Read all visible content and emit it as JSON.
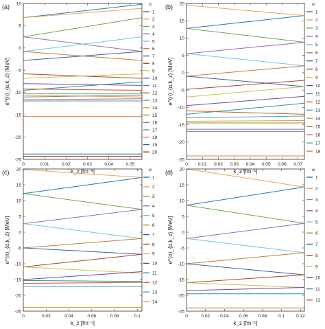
{
  "chart_data": [
    {
      "type": "line",
      "panel_label": "(a)",
      "xlabel": "k_z  [fm⁻¹]",
      "ylabel": "e^(n)_{α,k_z}  [MeV]",
      "xlim": [
        0,
        0.0555
      ],
      "ylim": [
        -25,
        10
      ],
      "x_ticks": [
        "0",
        "0.01",
        "0.02",
        "0.03",
        "0.04",
        "0.05"
      ],
      "x_tick_values": [
        0,
        0.01,
        0.02,
        0.03,
        0.04,
        0.05
      ],
      "y_ticks": [
        "10",
        "5",
        "0",
        "-5",
        "-10",
        "-15",
        "-20",
        "-25"
      ],
      "y_tick_values": [
        10,
        5,
        0,
        -5,
        -10,
        -15,
        -20,
        -25
      ],
      "legend_title": "α",
      "legend_labels": [
        "1",
        "2",
        "3",
        "4",
        "5",
        "6",
        "7",
        "8",
        "9",
        "10",
        "11",
        "12",
        "13",
        "14",
        "15",
        "16",
        "17",
        "18",
        "19",
        "20"
      ],
      "series": [
        {
          "x": [
            0,
            0.0555
          ],
          "y": [
            6.8,
            9.8
          ]
        },
        {
          "x": [
            0,
            0.0555
          ],
          "y": [
            6.8,
            8.9
          ]
        },
        {
          "x": [
            0,
            0.0555
          ],
          "y": [
            2.5,
            6.8
          ]
        },
        {
          "x": [
            0,
            0.0555
          ],
          "y": [
            2.5,
            -0.8
          ]
        },
        {
          "x": [
            0,
            0.0555
          ],
          "y": [
            -0.8,
            2.5
          ]
        },
        {
          "x": [
            0,
            0.0555
          ],
          "y": [
            -0.8,
            -2.8
          ]
        },
        {
          "x": [
            0,
            0.0555
          ],
          "y": [
            -2.8,
            -0.8
          ]
        },
        {
          "x": [
            0,
            0.0555
          ],
          "y": [
            -5.8,
            -6.8
          ]
        },
        {
          "x": [
            0,
            0.0555
          ],
          "y": [
            -6.8,
            -5.8
          ]
        },
        {
          "x": [
            0,
            0.0555
          ],
          "y": [
            -8.0,
            -8.4
          ]
        },
        {
          "x": [
            0,
            0.0555
          ],
          "y": [
            -9.5,
            -7.6
          ]
        },
        {
          "x": [
            0,
            0.0555
          ],
          "y": [
            -9.2,
            -9.5
          ]
        },
        {
          "x": [
            0,
            0.0555
          ],
          "y": [
            -10.3,
            -10.3
          ]
        },
        {
          "x": [
            0,
            0.0555
          ],
          "y": [
            -10.6,
            -11.0
          ]
        },
        {
          "x": [
            0,
            0.0555
          ],
          "y": [
            -11.0,
            -10.6
          ]
        },
        {
          "x": [
            0,
            0.0555
          ],
          "y": [
            -11.6,
            -11.4
          ]
        },
        {
          "x": [
            0,
            0.0555
          ],
          "y": [
            -11.9,
            -11.9
          ]
        },
        {
          "x": [
            0,
            0.0555
          ],
          "y": [
            -15.4,
            -15.4
          ]
        },
        {
          "x": [
            0,
            0.0555
          ],
          "y": [
            -23.8,
            -23.8
          ]
        },
        {
          "x": [
            0,
            0.0555
          ],
          "y": [
            -24.3,
            -24.3
          ]
        }
      ]
    },
    {
      "type": "line",
      "panel_label": "(b)",
      "xlabel": "k_z  [fm⁻¹]",
      "ylabel": "e^(n)_{α,k_z}  [MeV]",
      "xlim": [
        0,
        0.074
      ],
      "ylim": [
        -25,
        20
      ],
      "x_ticks": [
        "0",
        "0.01",
        "0.02",
        "0.03",
        "0.04",
        "0.05",
        "0.06",
        "0.07"
      ],
      "x_tick_values": [
        0,
        0.01,
        0.02,
        0.03,
        0.04,
        0.05,
        0.06,
        0.07
      ],
      "y_ticks": [
        "20",
        "15",
        "10",
        "5",
        "0",
        "-5",
        "-10",
        "-15",
        "-20",
        "-25"
      ],
      "y_tick_values": [
        20,
        15,
        10,
        5,
        0,
        -5,
        -10,
        -15,
        -20,
        -25
      ],
      "legend_title": "α",
      "legend_labels": [
        "1",
        "2",
        "3",
        "4",
        "5",
        "6",
        "7",
        "8",
        "9",
        "10",
        "11",
        "12",
        "13",
        "14",
        "15",
        "16",
        "17",
        "18"
      ],
      "series": [
        {
          "x": [
            0,
            0.074
          ],
          "y": [
            12.8,
            16.5
          ]
        },
        {
          "x": [
            0,
            0.074
          ],
          "y": [
            19.5,
            16.5
          ]
        },
        {
          "x": [
            0,
            0.074
          ],
          "y": [
            12.8,
            8.8
          ]
        },
        {
          "x": [
            0,
            0.074
          ],
          "y": [
            5.5,
            8.8
          ]
        },
        {
          "x": [
            0,
            0.074
          ],
          "y": [
            5.5,
            2.0
          ]
        },
        {
          "x": [
            0,
            0.074
          ],
          "y": [
            -1.0,
            2.0
          ]
        },
        {
          "x": [
            0,
            0.074
          ],
          "y": [
            -1.0,
            -4.0
          ]
        },
        {
          "x": [
            0,
            0.074
          ],
          "y": [
            -4.8,
            -2.2
          ]
        },
        {
          "x": [
            0,
            0.074
          ],
          "y": [
            -7.0,
            -4.0
          ]
        },
        {
          "x": [
            0,
            0.074
          ],
          "y": [
            -9.5,
            -6.8
          ]
        },
        {
          "x": [
            0,
            0.074
          ],
          "y": [
            -12.0,
            -8.8
          ]
        },
        {
          "x": [
            0,
            0.074
          ],
          "y": [
            -11.0,
            -12.0
          ]
        },
        {
          "x": [
            0,
            0.074
          ],
          "y": [
            -13.0,
            -12.5
          ]
        },
        {
          "x": [
            0,
            0.074
          ],
          "y": [
            -14.0,
            -13.8
          ]
        },
        {
          "x": [
            0,
            0.074
          ],
          "y": [
            -14.5,
            -14.5
          ]
        },
        {
          "x": [
            0,
            0.074
          ],
          "y": [
            -16.3,
            -16.3
          ]
        },
        {
          "x": [
            0,
            0.074
          ],
          "y": [
            -17.0,
            -17.0
          ]
        },
        {
          "x": [
            0,
            0.074
          ],
          "y": [
            -24.0,
            -24.0
          ]
        }
      ]
    },
    {
      "type": "line",
      "panel_label": "(c)",
      "xlabel": "k_z  [fm⁻¹]",
      "ylabel": "e^(n)_{α,k_z}  [MeV]",
      "xlim": [
        0,
        0.104
      ],
      "ylim": [
        -25,
        20
      ],
      "x_ticks": [
        "0",
        "0.02",
        "0.04",
        "0.06",
        "0.08",
        "0.1"
      ],
      "x_tick_values": [
        0,
        0.02,
        0.04,
        0.06,
        0.08,
        0.1
      ],
      "y_ticks": [
        "20",
        "15",
        "10",
        "5",
        "0",
        "-5",
        "-10",
        "-15",
        "-20",
        "-25"
      ],
      "y_tick_values": [
        20,
        15,
        10,
        5,
        0,
        -5,
        -10,
        -15,
        -20,
        -25
      ],
      "legend_title": "α",
      "legend_labels": [
        "1",
        "2",
        "3",
        "4",
        "5",
        "6",
        "7",
        "8",
        "9",
        "10",
        "11",
        "12",
        "13",
        "14"
      ],
      "series": [
        {
          "x": [
            0,
            0.104
          ],
          "y": [
            12.2,
            17.3
          ]
        },
        {
          "x": [
            0,
            0.104
          ],
          "y": [
            19.8,
            17.3
          ]
        },
        {
          "x": [
            0,
            0.104
          ],
          "y": [
            12.2,
            7.2
          ]
        },
        {
          "x": [
            0,
            0.104
          ],
          "y": [
            2.7,
            7.2
          ]
        },
        {
          "x": [
            0,
            0.104
          ],
          "y": [
            2.7,
            -2.0
          ]
        },
        {
          "x": [
            0,
            0.104
          ],
          "y": [
            -5.0,
            -2.0
          ]
        },
        {
          "x": [
            0,
            0.104
          ],
          "y": [
            -5.0,
            -7.0
          ]
        },
        {
          "x": [
            0,
            0.104
          ],
          "y": [
            -11.0,
            -7.0
          ]
        },
        {
          "x": [
            0,
            0.104
          ],
          "y": [
            -11.0,
            -13.0
          ]
        },
        {
          "x": [
            0,
            0.104
          ],
          "y": [
            -15.0,
            -12.5
          ]
        },
        {
          "x": [
            0,
            0.104
          ],
          "y": [
            -15.3,
            -15.6
          ]
        },
        {
          "x": [
            0,
            0.104
          ],
          "y": [
            -16.2,
            -15.9
          ]
        },
        {
          "x": [
            0,
            0.104
          ],
          "y": [
            -17.2,
            -17.2
          ]
        },
        {
          "x": [
            0,
            0.104
          ],
          "y": [
            -23.8,
            -23.8
          ]
        }
      ]
    },
    {
      "type": "line",
      "panel_label": "(d)",
      "xlabel": "k_z  [fm⁻¹]",
      "ylabel": "e^(n)_{α,k_z}  [MeV]",
      "xlim": [
        0,
        0.124
      ],
      "ylim": [
        -25,
        20
      ],
      "x_ticks": [
        "0",
        "0.02",
        "0.04",
        "0.06",
        "0.08",
        "0.1",
        "0.12"
      ],
      "x_tick_values": [
        0,
        0.02,
        0.04,
        0.06,
        0.08,
        0.1,
        0.12
      ],
      "y_ticks": [
        "20",
        "15",
        "10",
        "5",
        "0",
        "-5",
        "-10",
        "-15",
        "-20",
        "-25"
      ],
      "y_tick_values": [
        20,
        15,
        10,
        5,
        0,
        -5,
        -10,
        -15,
        -20,
        -25
      ],
      "legend_title": "α",
      "legend_labels": [
        "1",
        "2",
        "3",
        "4",
        "5",
        "6",
        "7",
        "8",
        "9",
        "10",
        "11",
        "12"
      ],
      "series": [
        {
          "x": [
            0,
            0.124
          ],
          "y": [
            8.5,
            14.3
          ]
        },
        {
          "x": [
            0,
            0.124
          ],
          "y": [
            20.0,
            14.3
          ]
        },
        {
          "x": [
            0,
            0.124
          ],
          "y": [
            8.5,
            2.8
          ]
        },
        {
          "x": [
            0,
            0.124
          ],
          "y": [
            -2.0,
            2.8
          ]
        },
        {
          "x": [
            0,
            0.124
          ],
          "y": [
            -2.0,
            -6.5
          ]
        },
        {
          "x": [
            0,
            0.124
          ],
          "y": [
            -10.0,
            -6.5
          ]
        },
        {
          "x": [
            0,
            0.124
          ],
          "y": [
            -10.0,
            -13.5
          ]
        },
        {
          "x": [
            0,
            0.124
          ],
          "y": [
            -16.0,
            -13.5
          ]
        },
        {
          "x": [
            0,
            0.124
          ],
          "y": [
            -16.0,
            -17.5
          ]
        },
        {
          "x": [
            0,
            0.124
          ],
          "y": [
            -18.5,
            -17.5
          ]
        },
        {
          "x": [
            0,
            0.124
          ],
          "y": [
            -19.5,
            -19.5
          ]
        },
        {
          "x": [
            0,
            0.124
          ],
          "y": [
            -24.0,
            -24.0
          ]
        }
      ]
    }
  ],
  "palette": [
    "#1f77b4",
    "#f0a050",
    "#6aa84f",
    "#8e6bbf",
    "#6ec6e6",
    "#c77b2d",
    "#3f5f95",
    "#b0412e",
    "#c9c24a",
    "#6a4aa0",
    "#2e8ba8",
    "#d45a1a",
    "#4aa3c8",
    "#e0a020",
    "#8c8c3c",
    "#a060c0",
    "#5a9a9a",
    "#d08040",
    "#2060a0",
    "#a03030"
  ]
}
